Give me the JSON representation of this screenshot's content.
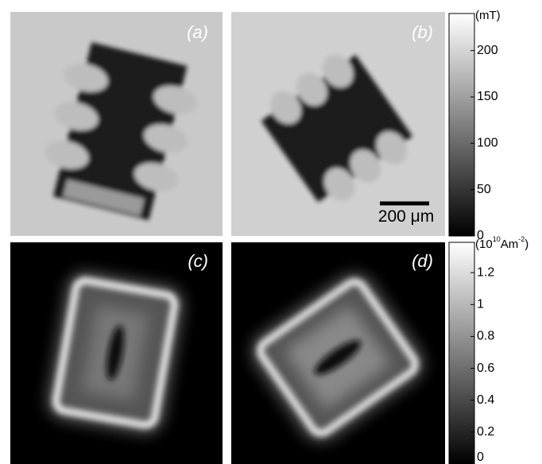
{
  "panels": [
    {
      "label": "(a)"
    },
    {
      "label": "(b)"
    },
    {
      "label": "(c)"
    },
    {
      "label": "(d)"
    }
  ],
  "scale_bar": {
    "label": "200 μm"
  },
  "colorbars": [
    {
      "unit": [
        "(mT)"
      ],
      "lim": [
        0,
        240
      ],
      "ticks": [
        200,
        150,
        100,
        50,
        0
      ]
    },
    {
      "unit": [
        "(10",
        "10",
        "Am",
        "-2",
        ")"
      ],
      "lim": [
        0,
        1.39
      ],
      "ticks": [
        1.2,
        1,
        0.8,
        0.6,
        0.4,
        0.2,
        0
      ]
    }
  ]
}
